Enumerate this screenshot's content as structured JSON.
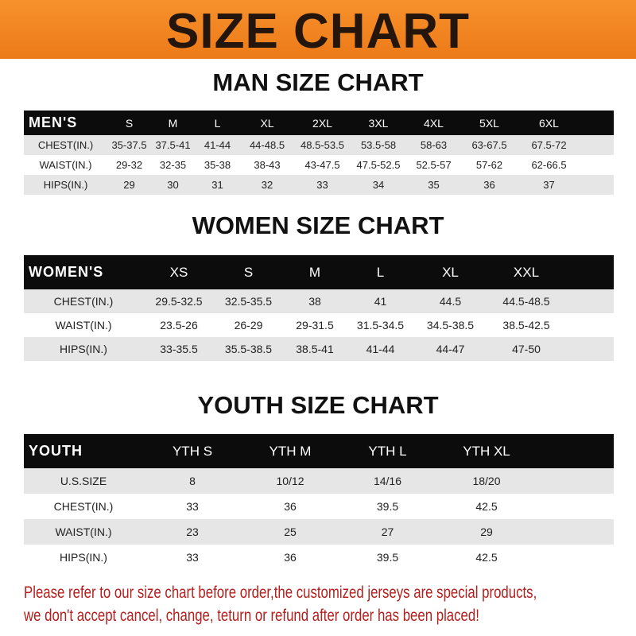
{
  "banner_title": "SIZE CHART",
  "men": {
    "title": "MAN SIZE CHART",
    "header": [
      "MEN'S",
      "S",
      "M",
      "L",
      "XL",
      "2XL",
      "3XL",
      "4XL",
      "5XL",
      "6XL"
    ],
    "rows": [
      [
        "CHEST(IN.)",
        "35-37.5",
        "37.5-41",
        "41-44",
        "44-48.5",
        "48.5-53.5",
        "53.5-58",
        "58-63",
        "63-67.5",
        "67.5-72"
      ],
      [
        "WAIST(IN.)",
        "29-32",
        "32-35",
        "35-38",
        "38-43",
        "43-47.5",
        "47.5-52.5",
        "52.5-57",
        "57-62",
        "62-66.5"
      ],
      [
        "HIPS(IN.)",
        "29",
        "30",
        "31",
        "32",
        "33",
        "34",
        "35",
        "36",
        "37"
      ]
    ]
  },
  "women": {
    "title": "WOMEN SIZE CHART",
    "header": [
      "WOMEN'S",
      "XS",
      "S",
      "M",
      "L",
      "XL",
      "XXL"
    ],
    "rows": [
      [
        "CHEST(IN.)",
        "29.5-32.5",
        "32.5-35.5",
        "38",
        "41",
        "44.5",
        "44.5-48.5"
      ],
      [
        "WAIST(IN.)",
        "23.5-26",
        "26-29",
        "29-31.5",
        "31.5-34.5",
        "34.5-38.5",
        "38.5-42.5"
      ],
      [
        "HIPS(IN.)",
        "33-35.5",
        "35.5-38.5",
        "38.5-41",
        "41-44",
        "44-47",
        "47-50"
      ]
    ]
  },
  "youth": {
    "title": "YOUTH SIZE CHART",
    "header": [
      "YOUTH",
      "YTH S",
      "YTH M",
      "YTH L",
      "YTH XL"
    ],
    "rows": [
      [
        "U.S.SIZE",
        "8",
        "10/12",
        "14/16",
        "18/20"
      ],
      [
        "CHEST(IN.)",
        "33",
        "36",
        "39.5",
        "42.5"
      ],
      [
        "WAIST(IN.)",
        "23",
        "25",
        "27",
        "29"
      ],
      [
        "HIPS(IN.)",
        "33",
        "36",
        "39.5",
        "42.5"
      ]
    ]
  },
  "note": [
    "Please refer to our size chart before order,the customized jerseys are special products,",
    "we don't accept cancel, change, teturn or refund after order has been placed!"
  ],
  "colors": {
    "banner": "#ef8020",
    "note": "#b3201e",
    "header_row": "#0c0c0c",
    "stripe": "#e6e6e6"
  }
}
